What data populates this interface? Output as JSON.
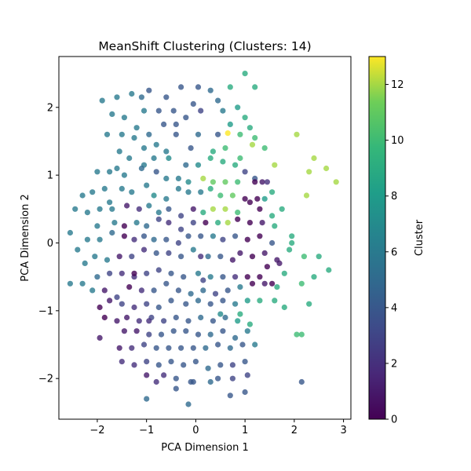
{
  "chart_data": {
    "type": "scatter",
    "title": "MeanShift Clustering (Clusters: 14)",
    "xlabel": "PCA Dimension 1",
    "ylabel": "PCA Dimension 2",
    "xlim": [
      -2.78,
      3.15
    ],
    "ylim": [
      -2.6,
      2.75
    ],
    "xticks": [
      -2,
      -1,
      0,
      1,
      2,
      3
    ],
    "yticks": [
      -2,
      -1,
      0,
      1,
      2
    ],
    "colorbar": {
      "label": "Cluster",
      "range": [
        0,
        13
      ],
      "ticks": [
        0,
        2,
        4,
        6,
        8,
        10,
        12
      ],
      "colormap": "viridis"
    },
    "point_alpha": 0.8,
    "grid": false,
    "points": [
      [
        -0.95,
        2.25,
        4
      ],
      [
        -0.6,
        2.15,
        4
      ],
      [
        -0.3,
        2.3,
        4
      ],
      [
        0.05,
        2.3,
        4
      ],
      [
        -1.6,
        2.15,
        6
      ],
      [
        -1.3,
        2.2,
        6
      ],
      [
        -1.1,
        2.15,
        5
      ],
      [
        -1.05,
        1.95,
        6
      ],
      [
        -0.75,
        1.95,
        4
      ],
      [
        -1.9,
        2.1,
        6
      ],
      [
        -0.45,
        1.95,
        4
      ],
      [
        -0.05,
        2.05,
        4
      ],
      [
        0.3,
        2.25,
        5
      ],
      [
        0.45,
        2.1,
        5
      ],
      [
        0.7,
        2.3,
        9
      ],
      [
        1.0,
        2.5,
        9
      ],
      [
        1.2,
        2.3,
        9
      ],
      [
        0.55,
        1.95,
        6
      ],
      [
        0.85,
        2.0,
        8
      ],
      [
        -1.7,
        1.9,
        6
      ],
      [
        -1.45,
        1.85,
        6
      ],
      [
        -1.8,
        1.6,
        6
      ],
      [
        -1.5,
        1.6,
        6
      ],
      [
        -1.2,
        1.7,
        6
      ],
      [
        -0.95,
        1.6,
        5
      ],
      [
        -0.65,
        1.75,
        4
      ],
      [
        -0.4,
        1.75,
        4
      ],
      [
        -0.2,
        1.85,
        4
      ],
      [
        0.1,
        1.95,
        3
      ],
      [
        0.45,
        1.6,
        4
      ],
      [
        0.7,
        1.75,
        8
      ],
      [
        1.0,
        1.85,
        9
      ],
      [
        1.1,
        1.7,
        9
      ],
      [
        0.9,
        1.6,
        10
      ],
      [
        0.65,
        1.62,
        13
      ],
      [
        0.35,
        1.35,
        9
      ],
      [
        0.6,
        1.4,
        10
      ],
      [
        0.9,
        1.25,
        10
      ],
      [
        1.15,
        1.45,
        12
      ],
      [
        1.2,
        1.55,
        10
      ],
      [
        1.4,
        1.4,
        10
      ],
      [
        -1.55,
        1.35,
        6
      ],
      [
        -1.05,
        1.4,
        6
      ],
      [
        -0.8,
        1.45,
        6
      ],
      [
        -0.6,
        1.35,
        6
      ],
      [
        -0.4,
        1.6,
        4
      ],
      [
        -0.1,
        1.4,
        4
      ],
      [
        0.05,
        1.6,
        5
      ],
      [
        -1.25,
        1.55,
        6
      ],
      [
        -1.35,
        1.25,
        6
      ],
      [
        -1.05,
        1.15,
        6
      ],
      [
        -0.85,
        1.25,
        6
      ],
      [
        -0.55,
        1.25,
        7
      ],
      [
        -0.2,
        1.15,
        5
      ],
      [
        0.05,
        1.15,
        7
      ],
      [
        0.3,
        1.25,
        9
      ],
      [
        0.55,
        1.2,
        9
      ],
      [
        0.8,
        1.15,
        9
      ],
      [
        1.0,
        1.05,
        3
      ],
      [
        1.2,
        0.95,
        4
      ],
      [
        -1.6,
        1.1,
        6
      ],
      [
        -2.0,
        1.05,
        6
      ],
      [
        -1.75,
        1.05,
        6
      ],
      [
        -1.45,
        1.0,
        6
      ],
      [
        -1.1,
        1.1,
        5
      ],
      [
        -0.8,
        1.05,
        4
      ],
      [
        -0.6,
        0.95,
        6
      ],
      [
        -0.35,
        0.95,
        6
      ],
      [
        -0.15,
        0.9,
        7
      ],
      [
        0.15,
        0.95,
        12
      ],
      [
        0.35,
        0.9,
        11
      ],
      [
        0.6,
        0.9,
        11
      ],
      [
        0.85,
        0.9,
        10
      ],
      [
        1.2,
        0.9,
        0
      ],
      [
        1.35,
        0.9,
        1
      ],
      [
        1.45,
        0.9,
        2
      ],
      [
        1.6,
        1.15,
        12
      ],
      [
        2.05,
        1.6,
        12
      ],
      [
        2.4,
        1.25,
        12
      ],
      [
        2.3,
        1.05,
        12
      ],
      [
        2.65,
        1.1,
        12
      ],
      [
        2.85,
        0.9,
        12
      ],
      [
        2.25,
        0.7,
        12
      ],
      [
        -2.3,
        0.7,
        6
      ],
      [
        -2.1,
        0.75,
        6
      ],
      [
        -1.85,
        0.8,
        6
      ],
      [
        -1.75,
        0.6,
        6
      ],
      [
        -1.5,
        0.8,
        6
      ],
      [
        -1.3,
        0.75,
        6
      ],
      [
        -1.0,
        0.85,
        6
      ],
      [
        -0.85,
        0.7,
        7
      ],
      [
        -0.6,
        0.65,
        6
      ],
      [
        -0.35,
        0.8,
        6
      ],
      [
        -0.15,
        0.75,
        6
      ],
      [
        0.1,
        0.75,
        6
      ],
      [
        0.3,
        0.8,
        9
      ],
      [
        0.5,
        0.7,
        10
      ],
      [
        0.75,
        0.7,
        11
      ],
      [
        1.0,
        0.65,
        0
      ],
      [
        1.25,
        0.65,
        0
      ],
      [
        1.4,
        0.65,
        8
      ],
      [
        1.55,
        0.75,
        9
      ],
      [
        1.75,
        0.5,
        9
      ],
      [
        -2.45,
        0.5,
        6
      ],
      [
        -2.2,
        0.45,
        6
      ],
      [
        -1.95,
        0.5,
        6
      ],
      [
        -1.7,
        0.5,
        6
      ],
      [
        -1.4,
        0.55,
        1
      ],
      [
        -1.15,
        0.5,
        2
      ],
      [
        -0.95,
        0.55,
        6
      ],
      [
        -0.75,
        0.45,
        6
      ],
      [
        -0.55,
        0.5,
        4
      ],
      [
        -0.3,
        0.4,
        3
      ],
      [
        -0.05,
        0.5,
        1
      ],
      [
        0.15,
        0.45,
        9
      ],
      [
        0.35,
        0.5,
        12
      ],
      [
        0.6,
        0.5,
        12
      ],
      [
        0.85,
        0.45,
        10
      ],
      [
        1.1,
        0.6,
        0
      ],
      [
        1.3,
        0.5,
        0
      ],
      [
        1.55,
        0.4,
        9
      ],
      [
        -2.55,
        0.15,
        6
      ],
      [
        -2.0,
        0.25,
        6
      ],
      [
        -1.65,
        0.3,
        6
      ],
      [
        -1.45,
        0.25,
        0
      ],
      [
        -1.2,
        0.3,
        6
      ],
      [
        -1.0,
        0.25,
        5
      ],
      [
        -0.75,
        0.35,
        3
      ],
      [
        -0.55,
        0.3,
        2
      ],
      [
        -0.3,
        0.2,
        3
      ],
      [
        -0.05,
        0.3,
        3
      ],
      [
        0.2,
        0.3,
        0
      ],
      [
        0.45,
        0.3,
        9
      ],
      [
        0.65,
        0.3,
        12
      ],
      [
        0.85,
        0.35,
        0
      ],
      [
        1.1,
        0.3,
        0
      ],
      [
        1.35,
        0.3,
        1
      ],
      [
        1.6,
        0.25,
        9
      ],
      [
        1.95,
        0.1,
        9
      ],
      [
        -2.4,
        -0.1,
        6
      ],
      [
        -2.2,
        0.05,
        6
      ],
      [
        -1.95,
        0.05,
        6
      ],
      [
        -1.7,
        0.15,
        5
      ],
      [
        -1.45,
        0.1,
        0
      ],
      [
        -1.25,
        0.05,
        2
      ],
      [
        -1.05,
        0.1,
        4
      ],
      [
        -0.85,
        0.05,
        5
      ],
      [
        -0.6,
        0.05,
        4
      ],
      [
        -0.35,
        0.0,
        3
      ],
      [
        -0.15,
        0.1,
        4
      ],
      [
        0.1,
        0.1,
        4
      ],
      [
        0.35,
        0.1,
        6
      ],
      [
        0.55,
        0.05,
        3
      ],
      [
        0.8,
        0.1,
        4
      ],
      [
        1.05,
        0.05,
        0
      ],
      [
        1.3,
        0.1,
        0
      ],
      [
        1.55,
        0.0,
        4
      ],
      [
        1.95,
        0.0,
        9
      ],
      [
        -2.25,
        -0.3,
        6
      ],
      [
        -2.05,
        -0.2,
        6
      ],
      [
        -1.8,
        -0.25,
        6
      ],
      [
        -1.55,
        -0.2,
        1
      ],
      [
        -1.3,
        -0.2,
        3
      ],
      [
        -1.05,
        -0.1,
        2
      ],
      [
        -0.8,
        -0.15,
        4
      ],
      [
        -0.55,
        -0.15,
        3
      ],
      [
        -0.3,
        -0.2,
        4
      ],
      [
        -0.05,
        -0.1,
        6
      ],
      [
        0.25,
        -0.2,
        5
      ],
      [
        0.5,
        -0.2,
        4
      ],
      [
        0.75,
        -0.25,
        1
      ],
      [
        0.9,
        -0.15,
        1
      ],
      [
        1.15,
        -0.2,
        0
      ],
      [
        1.4,
        -0.15,
        1
      ],
      [
        1.65,
        -0.25,
        1
      ],
      [
        1.9,
        -0.1,
        9
      ],
      [
        2.2,
        -0.2,
        10
      ],
      [
        2.5,
        -0.2,
        9
      ],
      [
        -2.55,
        -0.6,
        6
      ],
      [
        -2.3,
        -0.6,
        6
      ],
      [
        -2.0,
        -0.5,
        5
      ],
      [
        -1.75,
        -0.45,
        3
      ],
      [
        -1.5,
        -0.45,
        2
      ],
      [
        -1.25,
        -0.5,
        2
      ],
      [
        -1.0,
        -0.45,
        3
      ],
      [
        -0.75,
        -0.4,
        3
      ],
      [
        -0.5,
        -0.45,
        4
      ],
      [
        -0.25,
        -0.5,
        4
      ],
      [
        0.05,
        -0.45,
        6
      ],
      [
        0.3,
        -0.5,
        6
      ],
      [
        0.55,
        -0.5,
        4
      ],
      [
        0.8,
        -0.5,
        2
      ],
      [
        1.05,
        -0.5,
        0
      ],
      [
        1.3,
        -0.5,
        0
      ],
      [
        1.55,
        -0.6,
        0
      ],
      [
        1.8,
        -0.45,
        9
      ],
      [
        2.15,
        -0.6,
        10
      ],
      [
        2.4,
        -0.5,
        9
      ],
      [
        2.7,
        -0.4,
        9
      ],
      [
        -2.1,
        -0.7,
        6
      ],
      [
        -1.85,
        -0.7,
        1
      ],
      [
        -1.6,
        -0.8,
        3
      ],
      [
        -1.35,
        -0.65,
        0
      ],
      [
        -1.1,
        -0.7,
        2
      ],
      [
        -0.85,
        -0.7,
        4
      ],
      [
        -0.6,
        -0.6,
        4
      ],
      [
        -0.35,
        -0.7,
        4
      ],
      [
        -0.1,
        -0.75,
        5
      ],
      [
        0.15,
        -0.7,
        5
      ],
      [
        0.4,
        -0.75,
        3
      ],
      [
        0.65,
        -0.7,
        4
      ],
      [
        0.9,
        -0.65,
        6
      ],
      [
        1.15,
        -0.6,
        0
      ],
      [
        1.4,
        -0.6,
        1
      ],
      [
        1.65,
        -0.65,
        9
      ],
      [
        -1.95,
        -0.95,
        0
      ],
      [
        -1.75,
        -0.85,
        1
      ],
      [
        -1.5,
        -0.9,
        3
      ],
      [
        -1.25,
        -0.95,
        2
      ],
      [
        -1.0,
        -0.9,
        3
      ],
      [
        -0.75,
        -0.95,
        4
      ],
      [
        -0.5,
        -0.85,
        4
      ],
      [
        -0.2,
        -0.9,
        4
      ],
      [
        0.05,
        -0.85,
        5
      ],
      [
        0.3,
        -0.9,
        4
      ],
      [
        0.55,
        -0.85,
        4
      ],
      [
        0.8,
        -0.9,
        6
      ],
      [
        1.05,
        -0.85,
        8
      ],
      [
        1.3,
        -0.85,
        9
      ],
      [
        1.6,
        -0.85,
        9
      ],
      [
        1.8,
        -0.95,
        9
      ],
      [
        2.3,
        -0.9,
        9
      ],
      [
        -1.85,
        -1.1,
        0
      ],
      [
        -1.6,
        -1.15,
        1
      ],
      [
        -1.4,
        -1.1,
        1
      ],
      [
        -1.15,
        -1.15,
        2
      ],
      [
        -0.9,
        -1.1,
        3
      ],
      [
        -0.65,
        -1.15,
        3
      ],
      [
        -0.4,
        -1.1,
        4
      ],
      [
        -0.15,
        -1.15,
        4
      ],
      [
        0.1,
        -1.1,
        5
      ],
      [
        0.35,
        -1.15,
        4
      ],
      [
        0.6,
        -1.1,
        5
      ],
      [
        0.85,
        -1.15,
        8
      ],
      [
        1.1,
        -1.2,
        9
      ],
      [
        -1.95,
        -1.4,
        1
      ],
      [
        -1.45,
        -1.3,
        1
      ],
      [
        -1.2,
        -1.3,
        1
      ],
      [
        -0.95,
        -1.35,
        3
      ],
      [
        -0.7,
        -1.35,
        4
      ],
      [
        -0.45,
        -1.3,
        4
      ],
      [
        -0.2,
        -1.3,
        4
      ],
      [
        0.05,
        -1.35,
        4
      ],
      [
        0.3,
        -1.35,
        5
      ],
      [
        0.55,
        -1.3,
        4
      ],
      [
        0.8,
        -1.4,
        5
      ],
      [
        1.05,
        -1.3,
        6
      ],
      [
        2.15,
        -1.35,
        10
      ],
      [
        -1.55,
        -1.55,
        1
      ],
      [
        -1.3,
        -1.55,
        2
      ],
      [
        -1.05,
        -1.5,
        3
      ],
      [
        -0.8,
        -1.55,
        4
      ],
      [
        -0.55,
        -1.55,
        4
      ],
      [
        -0.3,
        -1.55,
        4
      ],
      [
        -0.05,
        -1.55,
        4
      ],
      [
        0.2,
        -1.55,
        5
      ],
      [
        0.45,
        -1.5,
        4
      ],
      [
        0.7,
        -1.55,
        5
      ],
      [
        0.95,
        -1.5,
        4
      ],
      [
        1.2,
        -1.5,
        6
      ],
      [
        -1.5,
        -1.75,
        2
      ],
      [
        -1.25,
        -1.8,
        2
      ],
      [
        -1.0,
        -1.75,
        3
      ],
      [
        -0.75,
        -1.8,
        4
      ],
      [
        -0.5,
        -1.75,
        4
      ],
      [
        -0.25,
        -1.8,
        4
      ],
      [
        0.0,
        -1.75,
        4
      ],
      [
        0.25,
        -1.85,
        5
      ],
      [
        0.5,
        -1.8,
        4
      ],
      [
        0.75,
        -1.8,
        3
      ],
      [
        1.0,
        -1.75,
        4
      ],
      [
        -1.0,
        -1.95,
        1
      ],
      [
        -0.65,
        -1.95,
        2
      ],
      [
        -0.4,
        -2.0,
        4
      ],
      [
        -0.1,
        -2.05,
        4
      ],
      [
        0.45,
        -2.0,
        4
      ],
      [
        0.75,
        -2.0,
        3
      ],
      [
        -0.8,
        -2.05,
        2
      ],
      [
        1.05,
        -1.95,
        3
      ],
      [
        -0.05,
        -2.05,
        4
      ],
      [
        0.3,
        -2.05,
        5
      ],
      [
        -0.4,
        -2.15,
        4
      ],
      [
        0.7,
        -2.25,
        4
      ],
      [
        1.0,
        -2.2,
        4
      ],
      [
        -1.0,
        -2.3,
        5
      ],
      [
        -0.15,
        -2.38,
        5
      ],
      [
        2.15,
        -2.05,
        4
      ],
      [
        2.05,
        -1.35,
        10
      ],
      [
        -1.25,
        -0.45,
        0
      ],
      [
        0.1,
        -0.2,
        2
      ],
      [
        0.15,
        -0.55,
        3
      ],
      [
        1.45,
        -0.35,
        0
      ],
      [
        1.7,
        -0.3,
        1
      ],
      [
        -0.95,
        -1.15,
        2
      ],
      [
        0.5,
        -1.05,
        7
      ],
      [
        0.9,
        -1.05,
        9
      ]
    ]
  }
}
